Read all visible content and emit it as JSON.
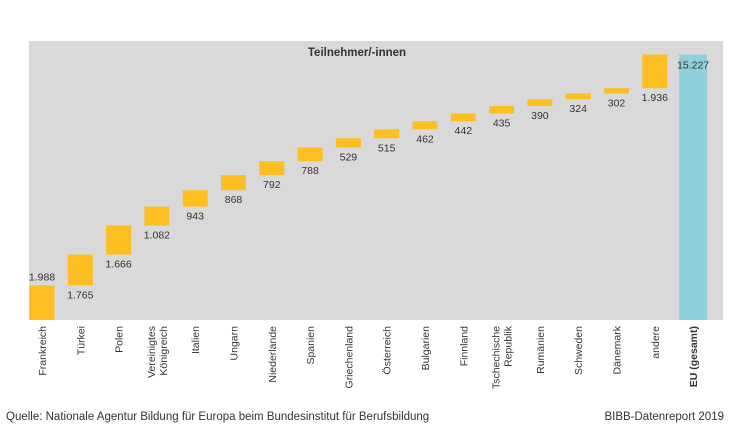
{
  "chart_data": {
    "type": "bar",
    "subtype": "waterfall",
    "title": "Teilnehmer/-innen",
    "categories": [
      "Frankreich",
      "Türkei",
      "Polen",
      "Vereinigtes Königreich",
      "Italien",
      "Ungarn",
      "Niederlande",
      "Spanien",
      "Griechenland",
      "Österreich",
      "Bulgarien",
      "Finnland",
      "Tschechische Republik",
      "Rumänien",
      "Schweden",
      "Dänemark",
      "andere"
    ],
    "category_lines": [
      [
        "Frankreich"
      ],
      [
        "Türkei"
      ],
      [
        "Polen"
      ],
      [
        "Vereinigtes",
        "Königreich"
      ],
      [
        "Italien"
      ],
      [
        "Ungarn"
      ],
      [
        "Niederlande"
      ],
      [
        "Spanien"
      ],
      [
        "Griechenland"
      ],
      [
        "Österreich"
      ],
      [
        "Bulgarien"
      ],
      [
        "Finnland"
      ],
      [
        "Tschechische",
        "Republik"
      ],
      [
        "Rumänien"
      ],
      [
        "Schweden"
      ],
      [
        "Dänemark"
      ],
      [
        "andere"
      ]
    ],
    "values": [
      1988,
      1765,
      1666,
      1082,
      943,
      868,
      792,
      788,
      529,
      515,
      462,
      442,
      435,
      390,
      324,
      302,
      1936
    ],
    "value_labels": [
      "1.988",
      "1.765",
      "1.666",
      "1.082",
      "943",
      "868",
      "792",
      "788",
      "529",
      "515",
      "462",
      "442",
      "435",
      "390",
      "324",
      "302",
      "1.936"
    ],
    "total": {
      "label": "EU (gesamt)",
      "value": 15227,
      "value_label": "15.227"
    },
    "ylim": [
      0,
      16000
    ],
    "grid": false,
    "colors": {
      "increment": "#fdbe22",
      "total": "#8fd0dc",
      "plot_background": "#d9d9d9",
      "text": "#333333"
    }
  },
  "footer": {
    "source": "Quelle: Nationale Agentur Bildung für Europa beim Bundesinstitut für Berufsbildung",
    "credit": "BIBB-Datenreport 2019"
  }
}
